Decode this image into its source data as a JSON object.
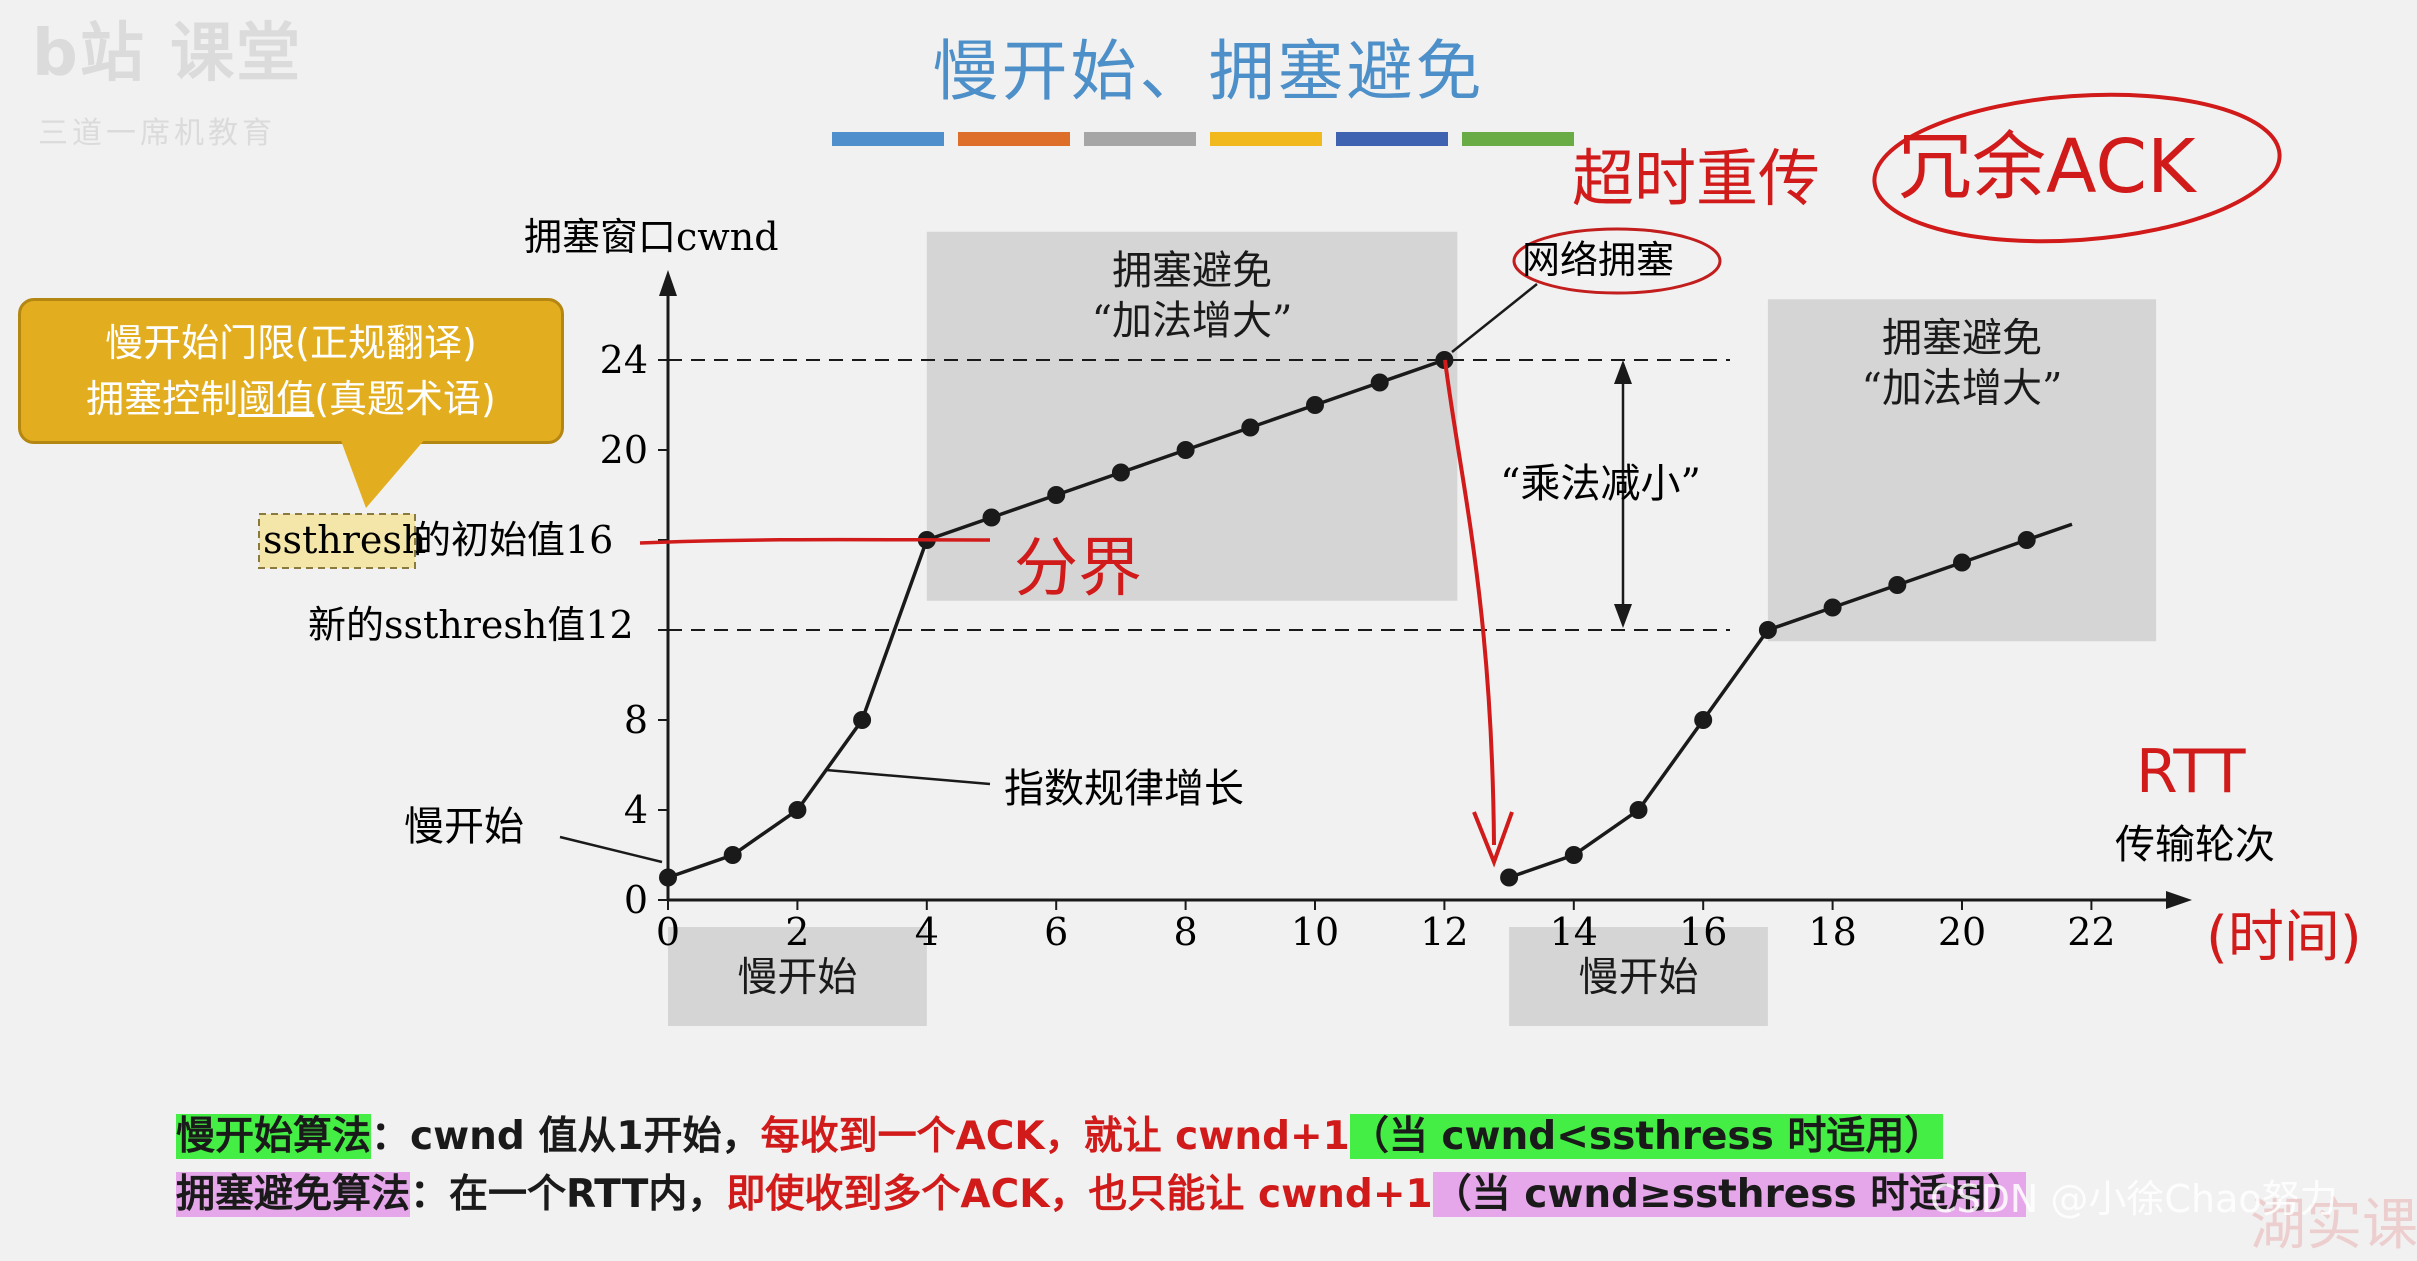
{
  "slide": {
    "title": "慢开始、拥塞避免",
    "color_bar": [
      "#4f8fcb",
      "#dd6f2a",
      "#a6a6a6",
      "#f1b91d",
      "#3f63b0",
      "#69ab45"
    ],
    "logo_text": "b站 课堂",
    "logo_sub": "三道一席机教育"
  },
  "callout": {
    "line1": "慢开始门限(正规翻译)",
    "line2_pre": "拥塞控制",
    "line2_ul": "阈值",
    "line2_post": "(真题术语)"
  },
  "chart_data": {
    "type": "line",
    "ylabel": "拥塞窗口cwnd",
    "xlabel": "传输轮次",
    "x_ticks": [
      "0",
      "2",
      "4",
      "6",
      "8",
      "10",
      "12",
      "14",
      "16",
      "18",
      "20",
      "22"
    ],
    "y_ticks": [
      "0",
      "4",
      "8",
      "12",
      "16",
      "20",
      "24"
    ],
    "xlim": [
      0,
      23.3
    ],
    "ylim": [
      0,
      27.5
    ],
    "series": [
      {
        "name": "",
        "x": [
          0,
          1,
          2,
          3,
          4,
          5,
          6,
          7,
          8,
          9,
          10,
          11,
          12
        ],
        "y": [
          1,
          2,
          4,
          8,
          16,
          17,
          18,
          19,
          20,
          21,
          22,
          23,
          24
        ]
      },
      {
        "name": "",
        "x": [
          13,
          14,
          15,
          16,
          17,
          18,
          19,
          20,
          21
        ],
        "y": [
          1,
          2,
          4,
          8,
          12,
          13,
          14,
          15,
          16
        ]
      }
    ],
    "line_tail": {
      "x": 21.7,
      "y": 16.7
    },
    "dashed_levels": [
      24,
      12
    ],
    "regions": [
      {
        "label": "拥塞避免\n“加法增大”",
        "x0": 4,
        "x1": 12.2,
        "y0": 13.3,
        "y1": 29.7,
        "label_pos": "top"
      },
      {
        "label": "拥塞避免\n“加法增大”",
        "x0": 17,
        "x1": 23,
        "y0": 11.5,
        "y1": 26.7,
        "label_pos": "top"
      },
      {
        "label": "慢开始",
        "x0": 0,
        "x1": 4,
        "y0": -5.6,
        "y1": -1.2,
        "label_pos": "center"
      },
      {
        "label": "慢开始",
        "x0": 13,
        "x1": 17,
        "y0": -5.6,
        "y1": -1.2,
        "label_pos": "center"
      }
    ],
    "annotations": {
      "initial_ssthresh_label_pre": "ssthresh",
      "initial_ssthresh_label_post": "的初始值16",
      "new_ssthresh_label": "新的ssthresh值12",
      "slow_start_label": "慢开始",
      "exponential_label": "指数规律增长",
      "multiplicative_label": "“乘法减小”",
      "congestion_label": "网络拥塞"
    }
  },
  "handwriting": {
    "timeout": "超时重传",
    "dup_ack": "冗余ACK",
    "boundary": "分界",
    "rtt": "RTT",
    "time": "(时间)"
  },
  "legend": {
    "slow_start_title": "慢开始算法",
    "slow_start_mid": "：cwnd 值从1开始，",
    "slow_start_red": "每收到一个ACK，就让 cwnd+1",
    "slow_start_cond": "（当 cwnd<ssthress 时适用）",
    "ca_title": "拥塞避免算法",
    "ca_mid": "：在一个RTT内，",
    "ca_red": "即使收到多个ACK，也只能让 cwnd+1",
    "ca_cond": "（当 cwnd≥ssthress 时适用）"
  },
  "watermark": {
    "csdn": "CSDN @小徐Chao努力",
    "corner": "湖实课程安"
  }
}
